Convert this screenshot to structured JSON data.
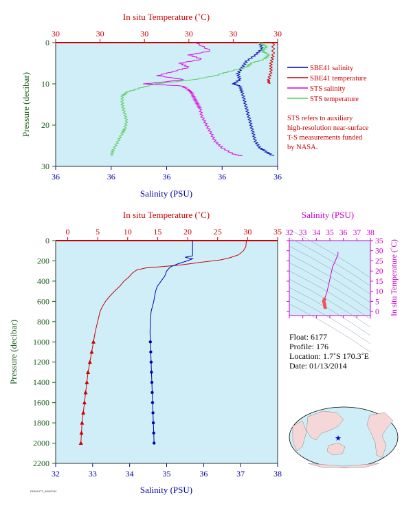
{
  "colors": {
    "panel_bg": "#cfeef7",
    "red": "#cc0000",
    "blue": "#0000aa",
    "green": "#1a5c1a",
    "magenta": "#cc00cc",
    "sts_salinity": "#dd00dd",
    "sts_temperature": "#55cc55",
    "land": "#f6d7d7"
  },
  "top": {
    "xlabel_top": "In situ Temperature (˚C)",
    "xlabel_bottom": "Salinity (PSU)",
    "ylabel": "Pressure (decibar)",
    "temp_ticks": [
      "30",
      "30",
      "30",
      "30",
      "30",
      "30"
    ],
    "sal_ticks": [
      "36",
      "36",
      "36",
      "36",
      "36"
    ],
    "y_ticks": [
      "0",
      "10",
      "20",
      "30"
    ],
    "legend": [
      "SBE41 salinity",
      "SBE41 temperature",
      "STS salinity",
      "STS temperature"
    ],
    "note": [
      "STS refers to auxiliary",
      "high-resolution near-surface",
      "T-S measurements funded",
      "by NASA."
    ]
  },
  "bottom": {
    "xlabel_top": "In situ Temperature (˚C)",
    "xlabel_bottom": "Salinity (PSU)",
    "ylabel": "Pressure (decibar)",
    "temp_ticks": [
      "0",
      "5",
      "10",
      "15",
      "20",
      "25",
      "30",
      "35"
    ],
    "sal_ticks": [
      "32",
      "33",
      "34",
      "35",
      "36",
      "37",
      "38"
    ],
    "y_ticks": [
      "0",
      "200",
      "400",
      "600",
      "800",
      "1000",
      "1200",
      "1400",
      "1600",
      "1800",
      "2000",
      "2200"
    ]
  },
  "ts": {
    "xlabel": "Salinity (PSU)",
    "ylabel": "In situ Temperature (˚C)",
    "x_ticks": [
      "32",
      "33",
      "34",
      "35",
      "36",
      "37",
      "38"
    ],
    "y_ticks": [
      "0",
      "5",
      "10",
      "15",
      "20",
      "25",
      "30",
      "35"
    ]
  },
  "info": {
    "float": "Float:  6177",
    "profile": "Profile:  176",
    "location": "Location:  1.7˚S  170.3˚E",
    "date": "Date:  01/13/2014"
  },
  "footer_code": "P6S00177_W0000S4",
  "chart_data": [
    {
      "type": "line",
      "title": "",
      "xlabel": "Salinity (PSU)",
      "x2label": "In situ Temperature (˚C)",
      "ylabel": "Pressure (decibar)",
      "ylim": [
        30,
        0
      ],
      "series": [
        {
          "name": "SBE41 salinity",
          "axis": "salinity_frac",
          "points": [
            [
              0.92,
              0
            ],
            [
              0.93,
              1.5
            ],
            [
              0.9,
              3
            ],
            [
              0.86,
              4.5
            ],
            [
              0.84,
              6
            ],
            [
              0.82,
              7.5
            ],
            [
              0.83,
              9
            ],
            [
              0.8,
              10
            ],
            [
              0.83,
              10.5
            ],
            [
              0.84,
              12
            ],
            [
              0.85,
              14
            ],
            [
              0.86,
              16
            ],
            [
              0.87,
              18
            ],
            [
              0.88,
              20
            ],
            [
              0.89,
              22
            ],
            [
              0.9,
              24
            ],
            [
              0.92,
              25.5
            ],
            [
              0.95,
              26.5
            ],
            [
              0.98,
              27.5
            ]
          ]
        },
        {
          "name": "SBE41 temperature",
          "axis": "temperature_frac",
          "points": [
            [
              0.98,
              0
            ],
            [
              0.98,
              3
            ],
            [
              0.97,
              5
            ],
            [
              0.97,
              7
            ],
            [
              0.96,
              9
            ],
            [
              0.96,
              10
            ]
          ]
        },
        {
          "name": "STS salinity",
          "axis": "salinity_frac",
          "points": [
            [
              0.63,
              0
            ],
            [
              0.7,
              2
            ],
            [
              0.6,
              3
            ],
            [
              0.66,
              4
            ],
            [
              0.56,
              5
            ],
            [
              0.6,
              6
            ],
            [
              0.53,
              7
            ],
            [
              0.46,
              8
            ],
            [
              0.58,
              9
            ],
            [
              0.4,
              10
            ],
            [
              0.57,
              10.5
            ],
            [
              0.6,
              11.5
            ],
            [
              0.61,
              12
            ],
            [
              0.62,
              13
            ],
            [
              0.63,
              14
            ],
            [
              0.64,
              15
            ],
            [
              0.65,
              16
            ],
            [
              0.66,
              18
            ],
            [
              0.68,
              20
            ],
            [
              0.7,
              22
            ],
            [
              0.72,
              24
            ],
            [
              0.75,
              25.5
            ],
            [
              0.8,
              27
            ],
            [
              0.84,
              27.5
            ]
          ]
        },
        {
          "name": "STS temperature",
          "axis": "temperature_frac",
          "points": [
            [
              0.92,
              0
            ],
            [
              0.95,
              1
            ],
            [
              0.93,
              2
            ],
            [
              0.96,
              3
            ],
            [
              0.94,
              4
            ],
            [
              0.88,
              5
            ],
            [
              0.86,
              6
            ],
            [
              0.78,
              7
            ],
            [
              0.72,
              8
            ],
            [
              0.62,
              9
            ],
            [
              0.45,
              10
            ],
            [
              0.38,
              11
            ],
            [
              0.32,
              12
            ],
            [
              0.3,
              13
            ],
            [
              0.3,
              15
            ],
            [
              0.31,
              17
            ],
            [
              0.32,
              19
            ],
            [
              0.31,
              21
            ],
            [
              0.3,
              22
            ],
            [
              0.28,
              24
            ],
            [
              0.26,
              26
            ],
            [
              0.25,
              27.5
            ]
          ]
        }
      ]
    },
    {
      "type": "line",
      "title": "",
      "xlabel": "Salinity (PSU)",
      "x2label": "In situ Temperature (˚C)",
      "ylabel": "Pressure (decibar)",
      "xlim_salinity": [
        32,
        38
      ],
      "xlim_temperature": [
        -2,
        35
      ],
      "ylim": [
        2200,
        0
      ],
      "series": [
        {
          "name": "",
          "quantity": "temperature",
          "points": [
            [
              29.8,
              0
            ],
            [
              29.7,
              60
            ],
            [
              29.3,
              100
            ],
            [
              28.5,
              140
            ],
            [
              27.0,
              170
            ],
            [
              25.5,
              190
            ],
            [
              22.0,
              215
            ],
            [
              19.0,
              240
            ],
            [
              16.0,
              255
            ],
            [
              13.0,
              270
            ],
            [
              11.5,
              290
            ],
            [
              10.8,
              320
            ],
            [
              10.2,
              360
            ],
            [
              9.4,
              400
            ],
            [
              8.7,
              450
            ],
            [
              7.8,
              500
            ],
            [
              7.0,
              550
            ],
            [
              6.3,
              600
            ],
            [
              5.8,
              650
            ],
            [
              5.4,
              700
            ],
            [
              5.0,
              800
            ],
            [
              4.6,
              900
            ],
            [
              4.3,
              1000
            ],
            [
              4.0,
              1100
            ],
            [
              3.7,
              1200
            ],
            [
              3.4,
              1300
            ],
            [
              3.2,
              1400
            ],
            [
              3.0,
              1500
            ],
            [
              2.8,
              1600
            ],
            [
              2.6,
              1700
            ],
            [
              2.4,
              1800
            ],
            [
              2.3,
              1900
            ],
            [
              2.2,
              2000
            ]
          ]
        },
        {
          "name": "",
          "quantity": "salinity",
          "points": [
            [
              35.7,
              0
            ],
            [
              35.7,
              100
            ],
            [
              35.7,
              150
            ],
            [
              35.5,
              165
            ],
            [
              35.7,
              180
            ],
            [
              35.55,
              200
            ],
            [
              35.3,
              230
            ],
            [
              35.1,
              260
            ],
            [
              35.0,
              300
            ],
            [
              34.95,
              350
            ],
            [
              34.85,
              400
            ],
            [
              34.75,
              450
            ],
            [
              34.7,
              500
            ],
            [
              34.65,
              600
            ],
            [
              34.58,
              700
            ],
            [
              34.56,
              800
            ],
            [
              34.55,
              900
            ],
            [
              34.56,
              1000
            ],
            [
              34.57,
              1100
            ],
            [
              34.58,
              1200
            ],
            [
              34.59,
              1300
            ],
            [
              34.6,
              1400
            ],
            [
              34.61,
              1500
            ],
            [
              34.62,
              1600
            ],
            [
              34.63,
              1700
            ],
            [
              34.64,
              1800
            ],
            [
              34.65,
              1900
            ],
            [
              34.66,
              2000
            ]
          ]
        }
      ],
      "markers_from_pressure": 1000
    },
    {
      "type": "scatter",
      "title": "",
      "xlabel": "Salinity (PSU)",
      "ylabel": "In situ Temperature (˚C)",
      "xlim": [
        32,
        38
      ],
      "ylim": [
        -2,
        35
      ],
      "points": [
        [
          35.6,
          29.5
        ],
        [
          35.6,
          28.0
        ],
        [
          35.4,
          25.0
        ],
        [
          35.2,
          22.0
        ],
        [
          35.1,
          19.0
        ],
        [
          35.0,
          16.0
        ],
        [
          34.9,
          13.0
        ],
        [
          34.8,
          10.0
        ],
        [
          34.7,
          8.0
        ],
        [
          34.6,
          6.0
        ],
        [
          34.55,
          5.0
        ],
        [
          34.6,
          4.0
        ],
        [
          34.62,
          3.0
        ],
        [
          34.65,
          2.0
        ]
      ]
    }
  ]
}
